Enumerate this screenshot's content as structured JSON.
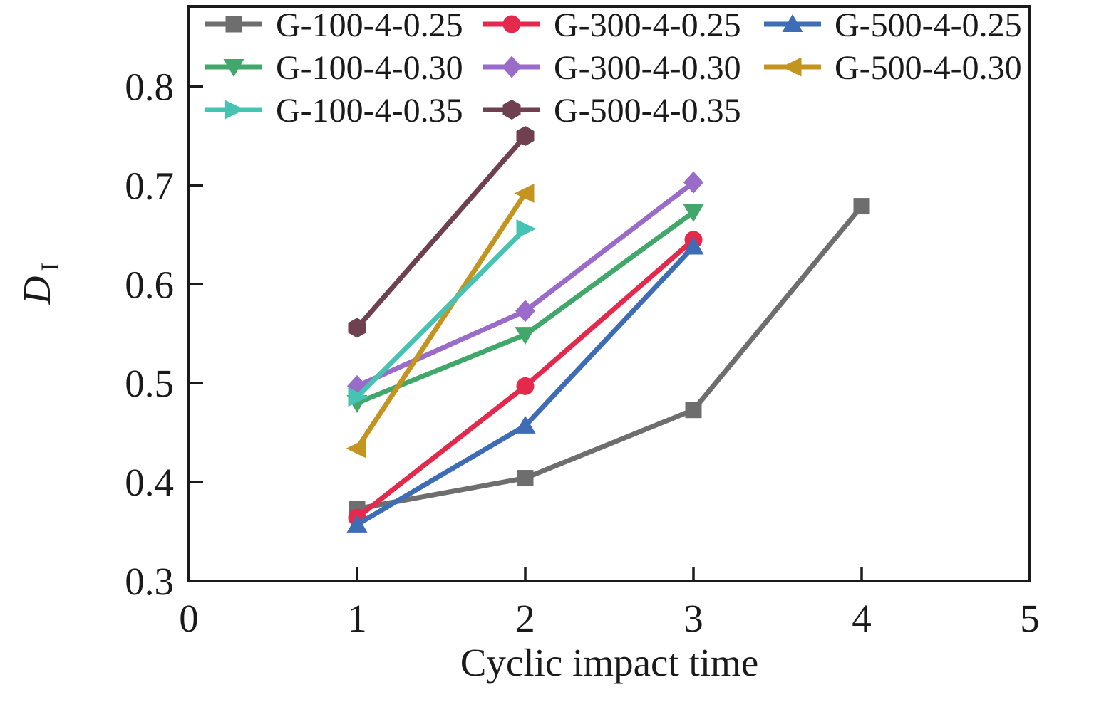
{
  "figure": {
    "background": "#ffffff",
    "axis_color": "#1a1a1a",
    "xlabel": "Cyclic impact time",
    "ylabel_base": "D",
    "ylabel_sub": "I"
  },
  "chart_data": {
    "type": "line",
    "title": "",
    "xlabel": "Cyclic impact time",
    "ylabel": "D_I",
    "xlim": [
      0,
      5
    ],
    "ylim": [
      0.3,
      0.881
    ],
    "xticks": [
      0,
      1,
      2,
      3,
      4,
      5
    ],
    "xtick_labels": [
      "0",
      "1",
      "2",
      "3",
      "4",
      "5"
    ],
    "yticks": [
      0.3,
      0.4,
      0.5,
      0.6,
      0.7,
      0.8
    ],
    "ytick_labels": [
      "0.3",
      "0.4",
      "0.5",
      "0.6",
      "0.7",
      "0.8"
    ],
    "grid": false,
    "legend_position": "top-left-inside",
    "legend_columns": 3,
    "series": [
      {
        "name": "G-100-4-0.25",
        "marker": "square",
        "color": "#6e6e6e",
        "x": [
          1,
          2,
          3,
          4
        ],
        "y": [
          0.373,
          0.404,
          0.473,
          0.679
        ]
      },
      {
        "name": "G-300-4-0.25",
        "marker": "circle",
        "color": "#e42a4c",
        "x": [
          1,
          2,
          3
        ],
        "y": [
          0.364,
          0.497,
          0.645
        ]
      },
      {
        "name": "G-500-4-0.25",
        "marker": "triangle-up",
        "color": "#3e6db5",
        "x": [
          1,
          2,
          3
        ],
        "y": [
          0.357,
          0.457,
          0.638
        ]
      },
      {
        "name": "G-100-4-0.30",
        "marker": "triangle-down",
        "color": "#42a76a",
        "x": [
          1,
          2,
          3
        ],
        "y": [
          0.48,
          0.549,
          0.673
        ]
      },
      {
        "name": "G-300-4-0.30",
        "marker": "diamond",
        "color": "#9a6bc9",
        "x": [
          1,
          2,
          3
        ],
        "y": [
          0.497,
          0.573,
          0.703
        ]
      },
      {
        "name": "G-500-4-0.30",
        "marker": "triangle-left",
        "color": "#c39420",
        "x": [
          1,
          2
        ],
        "y": [
          0.434,
          0.692
        ]
      },
      {
        "name": "G-100-4-0.35",
        "marker": "triangle-right",
        "color": "#46c3b2",
        "x": [
          1,
          2
        ],
        "y": [
          0.486,
          0.656
        ]
      },
      {
        "name": "G-500-4-0.35",
        "marker": "hexagon",
        "color": "#6e4050",
        "x": [
          1,
          2
        ],
        "y": [
          0.556,
          0.75
        ]
      }
    ]
  }
}
